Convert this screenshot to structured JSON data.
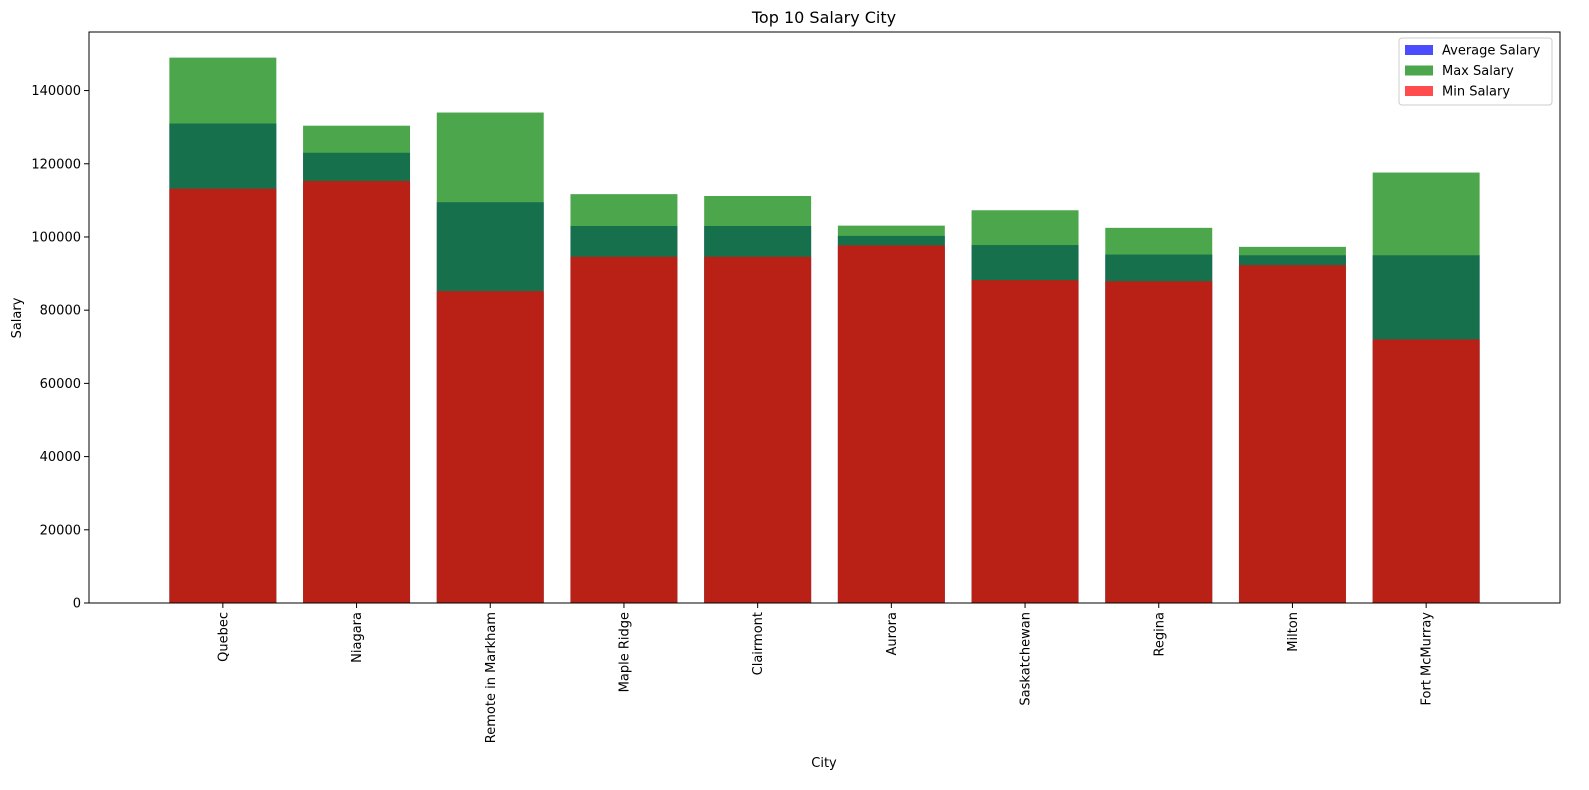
{
  "chart_data": {
    "type": "bar",
    "title": "Top 10 Salary City",
    "xlabel": "City",
    "ylabel": "Salary",
    "ylim": [
      0,
      156000
    ],
    "yticks": [
      0,
      20000,
      40000,
      60000,
      80000,
      100000,
      120000,
      140000
    ],
    "categories": [
      "Quebec",
      "Niagara",
      "Remote in Markham",
      "Maple Ridge",
      "Clairmont",
      "Aurora",
      "Saskatchewan",
      "Regina",
      "Milton",
      "Fort McMurray"
    ],
    "series": [
      {
        "name": "Average Salary",
        "color": "#0000ff",
        "alpha": 0.7,
        "values": [
          131000,
          123000,
          109500,
          103000,
          103000,
          100300,
          97800,
          95200,
          95000,
          95000
        ]
      },
      {
        "name": "Max Salary",
        "color": "#008000",
        "alpha": 0.7,
        "values": [
          149000,
          130400,
          134000,
          111700,
          111200,
          103100,
          107300,
          102500,
          97300,
          117600
        ]
      },
      {
        "name": "Min Salary",
        "color": "#ff0000",
        "alpha": 0.7,
        "values": [
          113200,
          115300,
          85200,
          94600,
          94600,
          97700,
          88200,
          87900,
          92300,
          72000
        ]
      }
    ],
    "grid": false,
    "legend_position": "top-right"
  }
}
